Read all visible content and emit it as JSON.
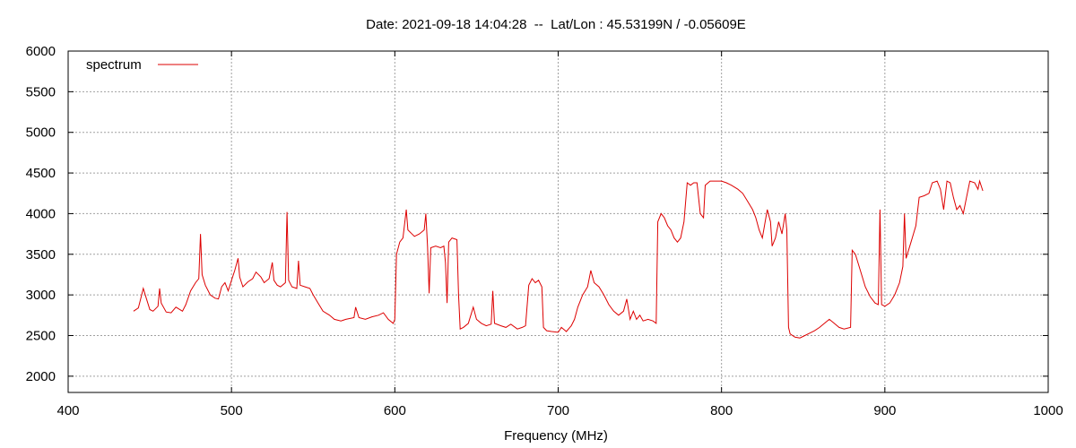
{
  "chart_data": {
    "type": "line",
    "title": "Date: 2021-09-18 14:04:28  --  Lat/Lon : 45.53199N / -0.05609E",
    "xlabel": "Frequency (MHz)",
    "ylabel": "",
    "xlim": [
      400,
      1000
    ],
    "ylim": [
      1800,
      6000
    ],
    "xticks": [
      400,
      500,
      600,
      700,
      800,
      900,
      1000
    ],
    "yticks": [
      2000,
      2500,
      3000,
      3500,
      4000,
      4500,
      5000,
      5500,
      6000
    ],
    "grid": true,
    "legend_position": "top-left",
    "series": [
      {
        "name": "spectrum",
        "color": "#dd0000",
        "points": [
          [
            440,
            2800
          ],
          [
            443,
            2840
          ],
          [
            445,
            3000
          ],
          [
            446,
            3080
          ],
          [
            448,
            2950
          ],
          [
            450,
            2820
          ],
          [
            452,
            2800
          ],
          [
            455,
            2860
          ],
          [
            456,
            3080
          ],
          [
            457,
            2900
          ],
          [
            460,
            2790
          ],
          [
            463,
            2780
          ],
          [
            466,
            2850
          ],
          [
            470,
            2800
          ],
          [
            472,
            2880
          ],
          [
            475,
            3050
          ],
          [
            478,
            3150
          ],
          [
            480,
            3200
          ],
          [
            481,
            3750
          ],
          [
            482,
            3250
          ],
          [
            484,
            3120
          ],
          [
            487,
            3000
          ],
          [
            490,
            2960
          ],
          [
            492,
            2950
          ],
          [
            494,
            3100
          ],
          [
            496,
            3150
          ],
          [
            498,
            3050
          ],
          [
            500,
            3180
          ],
          [
            502,
            3300
          ],
          [
            504,
            3450
          ],
          [
            505,
            3220
          ],
          [
            507,
            3100
          ],
          [
            510,
            3160
          ],
          [
            513,
            3200
          ],
          [
            515,
            3280
          ],
          [
            518,
            3220
          ],
          [
            520,
            3150
          ],
          [
            523,
            3200
          ],
          [
            525,
            3400
          ],
          [
            526,
            3180
          ],
          [
            528,
            3120
          ],
          [
            530,
            3100
          ],
          [
            533,
            3150
          ],
          [
            534,
            4020
          ],
          [
            535,
            3180
          ],
          [
            537,
            3100
          ],
          [
            540,
            3080
          ],
          [
            541,
            3420
          ],
          [
            542,
            3120
          ],
          [
            545,
            3100
          ],
          [
            548,
            3080
          ],
          [
            550,
            3000
          ],
          [
            553,
            2900
          ],
          [
            556,
            2800
          ],
          [
            560,
            2750
          ],
          [
            563,
            2700
          ],
          [
            567,
            2680
          ],
          [
            570,
            2700
          ],
          [
            575,
            2720
          ],
          [
            576,
            2850
          ],
          [
            578,
            2720
          ],
          [
            582,
            2700
          ],
          [
            586,
            2730
          ],
          [
            590,
            2750
          ],
          [
            593,
            2780
          ],
          [
            596,
            2700
          ],
          [
            599,
            2650
          ],
          [
            600,
            2700
          ],
          [
            601,
            3500
          ],
          [
            603,
            3650
          ],
          [
            605,
            3700
          ],
          [
            607,
            4050
          ],
          [
            608,
            3800
          ],
          [
            610,
            3760
          ],
          [
            612,
            3720
          ],
          [
            615,
            3750
          ],
          [
            618,
            3800
          ],
          [
            619,
            4000
          ],
          [
            620,
            3600
          ],
          [
            621,
            3020
          ],
          [
            622,
            3580
          ],
          [
            625,
            3600
          ],
          [
            628,
            3580
          ],
          [
            630,
            3600
          ],
          [
            631,
            3400
          ],
          [
            632,
            2900
          ],
          [
            633,
            3650
          ],
          [
            635,
            3700
          ],
          [
            638,
            3680
          ],
          [
            639,
            3000
          ],
          [
            640,
            2580
          ],
          [
            642,
            2600
          ],
          [
            645,
            2650
          ],
          [
            648,
            2850
          ],
          [
            650,
            2700
          ],
          [
            653,
            2650
          ],
          [
            656,
            2620
          ],
          [
            659,
            2640
          ],
          [
            660,
            3050
          ],
          [
            661,
            2650
          ],
          [
            665,
            2620
          ],
          [
            668,
            2600
          ],
          [
            671,
            2640
          ],
          [
            675,
            2580
          ],
          [
            678,
            2600
          ],
          [
            680,
            2620
          ],
          [
            682,
            3120
          ],
          [
            684,
            3200
          ],
          [
            686,
            3150
          ],
          [
            688,
            3180
          ],
          [
            690,
            3100
          ],
          [
            691,
            2600
          ],
          [
            693,
            2560
          ],
          [
            696,
            2550
          ],
          [
            700,
            2540
          ],
          [
            702,
            2600
          ],
          [
            705,
            2550
          ],
          [
            708,
            2620
          ],
          [
            710,
            2700
          ],
          [
            712,
            2850
          ],
          [
            715,
            3000
          ],
          [
            718,
            3100
          ],
          [
            720,
            3300
          ],
          [
            722,
            3150
          ],
          [
            725,
            3100
          ],
          [
            728,
            3000
          ],
          [
            731,
            2880
          ],
          [
            734,
            2800
          ],
          [
            737,
            2750
          ],
          [
            740,
            2800
          ],
          [
            742,
            2950
          ],
          [
            744,
            2700
          ],
          [
            746,
            2800
          ],
          [
            748,
            2700
          ],
          [
            750,
            2750
          ],
          [
            752,
            2680
          ],
          [
            755,
            2700
          ],
          [
            758,
            2680
          ],
          [
            760,
            2650
          ],
          [
            761,
            3900
          ],
          [
            763,
            4000
          ],
          [
            765,
            3950
          ],
          [
            767,
            3850
          ],
          [
            769,
            3800
          ],
          [
            771,
            3700
          ],
          [
            773,
            3650
          ],
          [
            775,
            3700
          ],
          [
            777,
            3900
          ],
          [
            779,
            4380
          ],
          [
            781,
            4350
          ],
          [
            783,
            4380
          ],
          [
            785,
            4380
          ],
          [
            787,
            4000
          ],
          [
            789,
            3950
          ],
          [
            790,
            4350
          ],
          [
            793,
            4400
          ],
          [
            797,
            4400
          ],
          [
            800,
            4400
          ],
          [
            803,
            4380
          ],
          [
            806,
            4350
          ],
          [
            810,
            4300
          ],
          [
            813,
            4250
          ],
          [
            816,
            4150
          ],
          [
            819,
            4050
          ],
          [
            821,
            3950
          ],
          [
            823,
            3800
          ],
          [
            825,
            3700
          ],
          [
            828,
            4050
          ],
          [
            830,
            3900
          ],
          [
            831,
            3600
          ],
          [
            833,
            3700
          ],
          [
            835,
            3900
          ],
          [
            837,
            3750
          ],
          [
            839,
            4000
          ],
          [
            840,
            3800
          ],
          [
            841,
            2600
          ],
          [
            842,
            2520
          ],
          [
            845,
            2480
          ],
          [
            848,
            2470
          ],
          [
            851,
            2500
          ],
          [
            854,
            2530
          ],
          [
            857,
            2560
          ],
          [
            860,
            2600
          ],
          [
            863,
            2650
          ],
          [
            866,
            2700
          ],
          [
            869,
            2650
          ],
          [
            872,
            2600
          ],
          [
            875,
            2580
          ],
          [
            879,
            2600
          ],
          [
            880,
            3550
          ],
          [
            882,
            3500
          ],
          [
            885,
            3300
          ],
          [
            888,
            3100
          ],
          [
            891,
            2980
          ],
          [
            894,
            2900
          ],
          [
            896,
            2880
          ],
          [
            897,
            4050
          ],
          [
            898,
            2880
          ],
          [
            900,
            2860
          ],
          [
            903,
            2900
          ],
          [
            906,
            3000
          ],
          [
            909,
            3150
          ],
          [
            911,
            3350
          ],
          [
            912,
            4000
          ],
          [
            913,
            3450
          ],
          [
            916,
            3650
          ],
          [
            919,
            3850
          ],
          [
            921,
            4200
          ],
          [
            924,
            4220
          ],
          [
            927,
            4250
          ],
          [
            929,
            4380
          ],
          [
            932,
            4400
          ],
          [
            934,
            4300
          ],
          [
            936,
            4050
          ],
          [
            938,
            4400
          ],
          [
            940,
            4380
          ],
          [
            942,
            4200
          ],
          [
            944,
            4050
          ],
          [
            946,
            4100
          ],
          [
            948,
            4000
          ],
          [
            950,
            4200
          ],
          [
            952,
            4400
          ],
          [
            955,
            4380
          ],
          [
            957,
            4300
          ],
          [
            958,
            4400
          ],
          [
            960,
            4280
          ]
        ]
      }
    ]
  }
}
